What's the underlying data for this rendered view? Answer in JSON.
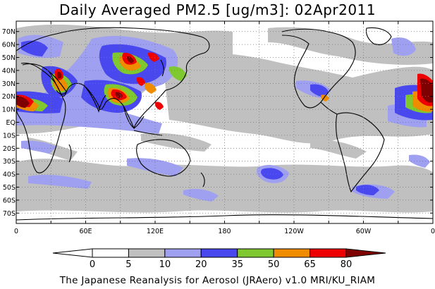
{
  "title": "Daily Averaged PM2.5 [ug/m3]: 02Apr2011",
  "credit": "The Japanese Reanalysis for Aerosol (JRAero) v1.0 MRI/KU_RIAM",
  "map": {
    "projection": "equirectangular, 0 to 360 longitude",
    "lat_labels": [
      "70N",
      "60N",
      "50N",
      "40N",
      "30N",
      "20N",
      "10N",
      "EQ",
      "10S",
      "20S",
      "30S",
      "40S",
      "50S",
      "60S",
      "70S"
    ],
    "lon_labels": [
      "0",
      "60E",
      "120E",
      "180",
      "120W",
      "60W",
      "0"
    ],
    "grid": "dotted"
  },
  "legend": {
    "levels": [
      "0",
      "5",
      "10",
      "20",
      "35",
      "50",
      "65",
      "80"
    ],
    "colors": [
      "#ffffff",
      "#c0c0c0",
      "#a0a0f0",
      "#4848ee",
      "#80c830",
      "#ef8c00",
      "#ee0000",
      "#7e0000"
    ]
  }
}
